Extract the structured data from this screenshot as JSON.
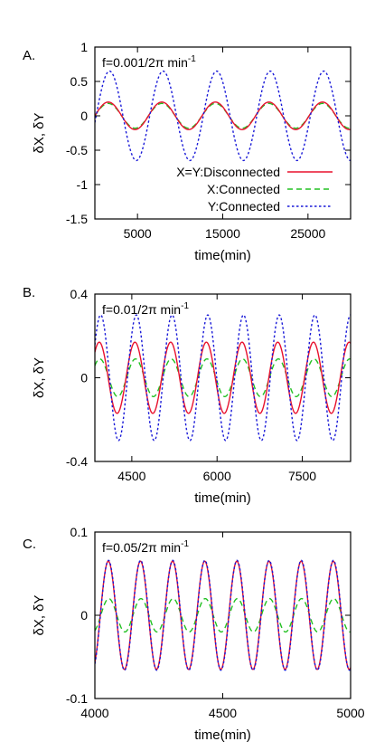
{
  "chart_data": [
    {
      "panel_label": "A.",
      "type": "line",
      "annotation": "f=0.001/2π min",
      "annotation_sup": "-1",
      "xlabel": "time(min)",
      "ylabel": "δX, δY",
      "xlim": [
        0,
        30000
      ],
      "ylim": [
        -1.5,
        1
      ],
      "xticks": [
        5000,
        15000,
        25000
      ],
      "xtick_labels": [
        "5000",
        "15000",
        "25000"
      ],
      "yticks": [
        1,
        0.5,
        0,
        -0.5,
        -1,
        -1.5
      ],
      "ytick_labels": [
        "1",
        "0.5",
        "0",
        "-0.5",
        "-1",
        "-1.5"
      ],
      "period": 6283,
      "legend_position": "bottom-right",
      "series": [
        {
          "name": "X=Y:Disconnected",
          "color": "#e8112d",
          "style": "solid",
          "amplitude": 0.2,
          "phase_shift": 0
        },
        {
          "name": "X:Connected",
          "color": "#22c022",
          "style": "dashed",
          "amplitude": 0.18,
          "phase_shift": 0
        },
        {
          "name": "Y:Connected",
          "color": "#1a1ad8",
          "style": "dotted",
          "amplitude": 0.65,
          "phase_shift": 0.15
        }
      ]
    },
    {
      "panel_label": "B.",
      "type": "line",
      "annotation": "f=0.01/2π min",
      "annotation_sup": "-1",
      "xlabel": "time(min)",
      "ylabel": "δX, δY",
      "xlim": [
        3850,
        8350
      ],
      "ylim": [
        -0.4,
        0.4
      ],
      "xticks": [
        4500,
        6000,
        7500
      ],
      "xtick_labels": [
        "4500",
        "6000",
        "7500"
      ],
      "yticks": [
        0.4,
        0,
        -0.4
      ],
      "ytick_labels": [
        "0.4",
        "0",
        "-0.4"
      ],
      "period": 628.3,
      "series": [
        {
          "name": "X=Y:Disconnected",
          "color": "#e8112d",
          "style": "solid",
          "amplitude": 0.17,
          "phase_shift": 0
        },
        {
          "name": "X:Connected",
          "color": "#22c022",
          "style": "dashed",
          "amplitude": 0.09,
          "phase_shift": 0.1
        },
        {
          "name": "Y:Connected",
          "color": "#1a1ad8",
          "style": "dotted",
          "amplitude": 0.3,
          "phase_shift": 0.25
        }
      ]
    },
    {
      "panel_label": "C.",
      "type": "line",
      "annotation": "f=0.05/2π min",
      "annotation_sup": "-1",
      "xlabel": "time(min)",
      "ylabel": "δX, δY",
      "xlim": [
        4000,
        5000
      ],
      "ylim": [
        -0.1,
        0.1
      ],
      "xticks": [
        4000,
        4500,
        5000
      ],
      "xtick_labels": [
        "4000",
        "4500",
        "5000"
      ],
      "yticks": [
        0.1,
        0,
        -0.1
      ],
      "ytick_labels": [
        "0.1",
        "0",
        "-0.1"
      ],
      "period": 125.66,
      "series": [
        {
          "name": "X=Y:Disconnected",
          "color": "#e8112d",
          "style": "solid",
          "amplitude": 0.065,
          "phase_shift": 0
        },
        {
          "name": "X:Connected",
          "color": "#22c022",
          "style": "dashed",
          "amplitude": 0.02,
          "phase_shift": 0.1
        },
        {
          "name": "Y:Connected",
          "color": "#1a1ad8",
          "style": "dotted",
          "amplitude": 0.066,
          "phase_shift": 0.03
        }
      ]
    }
  ]
}
